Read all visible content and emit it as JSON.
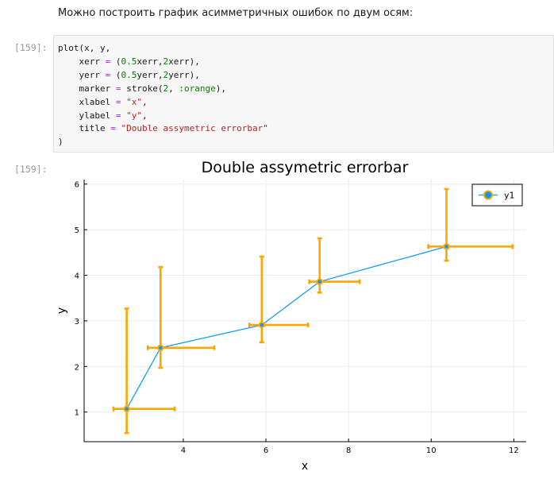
{
  "markdown": {
    "text": "Можно построить график асимметричных ошибок по двум осям:"
  },
  "cell": {
    "in_prompt": "[159]:",
    "out_prompt": "[159]:",
    "code": {
      "l1_a": "plot(x, y,",
      "l2_a": "    xerr ",
      "l2_op": "=",
      "l2_b": " (",
      "l2_n1": "0.5",
      "l2_c": "xerr,",
      "l2_n2": "2",
      "l2_d": "xerr),",
      "l3_a": "    yerr ",
      "l3_op": "=",
      "l3_b": " (",
      "l3_n1": "0.5",
      "l3_c": "yerr,",
      "l3_n2": "2",
      "l3_d": "yerr),",
      "l4_a": "    marker ",
      "l4_op": "=",
      "l4_b": " stroke(",
      "l4_n1": "2",
      "l4_c": ", ",
      "l4_sym": ":orange",
      "l4_d": "),",
      "l5_a": "    xlabel ",
      "l5_op": "=",
      "l5_b": " ",
      "l5_s": "\"x\"",
      "l5_c": ",",
      "l6_a": "    ylabel ",
      "l6_op": "=",
      "l6_b": " ",
      "l6_s": "\"y\"",
      "l6_c": ",",
      "l7_a": "    title ",
      "l7_op": "=",
      "l7_b": " ",
      "l7_s": "\"Double assymetric errorbar\"",
      "l8_a": ")"
    }
  },
  "colors": {
    "line": "#009af9",
    "errorbar": "#ffa500",
    "marker_fill": "#009af9",
    "marker_stroke": "#ffa500",
    "grid": "#ebebeb",
    "axis": "#000000"
  },
  "chart_data": {
    "type": "scatter",
    "title": "Double assymetric errorbar",
    "xlabel": "x",
    "ylabel": "y",
    "xlim": [
      1.6,
      12.3
    ],
    "ylim": [
      0.35,
      6.1
    ],
    "xticks": [
      4,
      6,
      8,
      10,
      12
    ],
    "yticks": [
      1,
      2,
      3,
      4,
      5,
      6
    ],
    "xtick_labels": [
      "4",
      "6",
      "8",
      "10",
      "12"
    ],
    "ytick_labels": [
      "1",
      "2",
      "3",
      "4",
      "5",
      "6"
    ],
    "grid": true,
    "legend_position": "top-right",
    "series": [
      {
        "name": "y1",
        "x": [
          2.63,
          3.45,
          5.9,
          7.3,
          10.37
        ],
        "y": [
          1.07,
          2.41,
          2.91,
          3.86,
          4.63
        ],
        "xerr_lower": [
          0.32,
          0.31,
          0.3,
          0.25,
          0.44
        ],
        "xerr_upper": [
          1.16,
          1.3,
          1.12,
          0.97,
          1.6
        ],
        "yerr_lower": [
          0.53,
          0.44,
          0.38,
          0.24,
          0.31
        ],
        "yerr_upper": [
          2.2,
          1.77,
          1.5,
          0.95,
          1.26
        ]
      }
    ]
  }
}
